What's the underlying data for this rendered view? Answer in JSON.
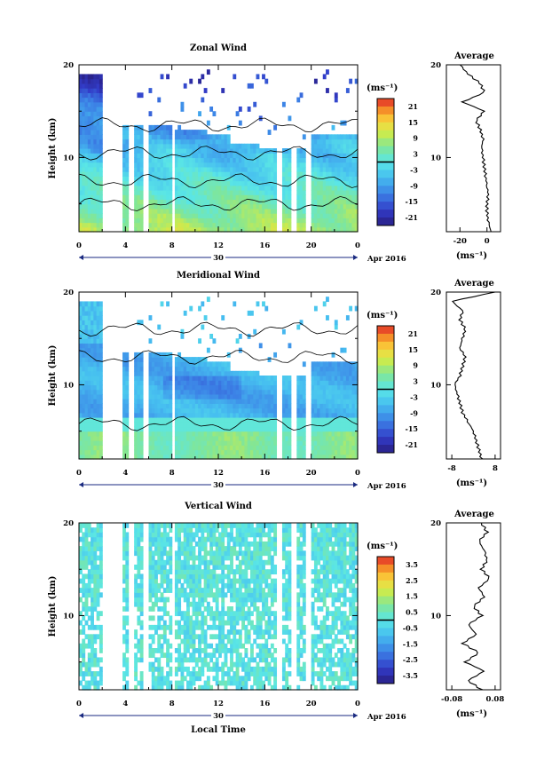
{
  "chart_data": [
    {
      "type": "heatmap",
      "title": "Zonal Wind",
      "ylabel": "Height (km)",
      "xlabel": "",
      "x_ticks": [
        "0",
        "4",
        "8",
        "12",
        "16",
        "20",
        "0"
      ],
      "y_ticks": [
        "20",
        "10"
      ],
      "xlim": [
        0,
        24
      ],
      "ylim": [
        2,
        20
      ],
      "date_day": "30",
      "date_month": "Apr 2016",
      "colorbar": {
        "unit": "(ms⁻¹)",
        "labels": [
          "21",
          "15",
          "9",
          "3",
          "-3",
          "-9",
          "-15",
          "-21"
        ],
        "range": [
          -24,
          24
        ]
      },
      "gaps_hours": [
        [
          2.0,
          3.6
        ],
        [
          4.1,
          4.6
        ],
        [
          5.3,
          6.0
        ],
        [
          7.8,
          8.1
        ],
        [
          17.0,
          17.5
        ],
        [
          18.2,
          18.6
        ],
        [
          19.4,
          19.9
        ]
      ],
      "profile": {
        "title": "Average",
        "xlabel": "(ms⁻¹)",
        "x_ticks": [
          "-20",
          "0"
        ],
        "xlim": [
          -30,
          10
        ],
        "y_ticks": [
          "20",
          "10"
        ],
        "z": [
          2,
          3,
          4,
          5,
          6,
          7,
          8,
          9,
          10,
          11,
          12,
          13,
          14,
          15,
          16,
          17,
          18,
          19,
          20
        ],
        "values": [
          3,
          1,
          0,
          0,
          1,
          0,
          -1,
          -2,
          -3,
          -4,
          -3,
          -5,
          -8,
          -2,
          -18,
          -2,
          -5,
          -14,
          -20
        ]
      }
    },
    {
      "type": "heatmap",
      "title": "Meridional Wind",
      "ylabel": "Height (km)",
      "xlabel": "",
      "x_ticks": [
        "0",
        "4",
        "8",
        "12",
        "16",
        "20",
        "0"
      ],
      "y_ticks": [
        "20",
        "10"
      ],
      "xlim": [
        0,
        24
      ],
      "ylim": [
        2,
        20
      ],
      "date_day": "30",
      "date_month": "Apr 2016",
      "colorbar": {
        "unit": "(ms⁻¹)",
        "labels": [
          "21",
          "15",
          "9",
          "3",
          "-3",
          "-9",
          "-15",
          "-21"
        ],
        "range": [
          -24,
          24
        ]
      },
      "gaps_hours": [
        [
          2.0,
          3.6
        ],
        [
          4.1,
          4.6
        ],
        [
          5.3,
          6.0
        ],
        [
          7.8,
          8.1
        ],
        [
          17.0,
          17.5
        ],
        [
          18.2,
          18.6
        ],
        [
          19.4,
          19.9
        ]
      ],
      "profile": {
        "title": "Average",
        "xlabel": "(ms⁻¹)",
        "x_ticks": [
          "-8",
          "8"
        ],
        "xlim": [
          -10,
          10
        ],
        "y_ticks": [
          "20",
          "10"
        ],
        "z": [
          2,
          3,
          4,
          5,
          6,
          7,
          8,
          9,
          10,
          11,
          12,
          13,
          14,
          15,
          16,
          17,
          18,
          19,
          20
        ],
        "values": [
          3,
          2,
          1,
          0,
          -2,
          -4,
          -5,
          -6,
          -7,
          -5,
          -4,
          -3,
          -5,
          -4,
          -3,
          -5,
          -4,
          -8,
          8
        ]
      }
    },
    {
      "type": "heatmap",
      "title": "Vertical Wind",
      "ylabel": "Height (km)",
      "xlabel": "Local Time",
      "x_ticks": [
        "0",
        "4",
        "8",
        "12",
        "16",
        "20",
        "0"
      ],
      "y_ticks": [
        "20",
        "10"
      ],
      "xlim": [
        0,
        24
      ],
      "ylim": [
        2,
        20
      ],
      "date_day": "30",
      "date_month": "Apr 2016",
      "colorbar": {
        "unit": "(ms⁻¹)",
        "labels": [
          "3.5",
          "2.5",
          "1.5",
          "0.5",
          "-0.5",
          "-1.5",
          "-2.5",
          "-3.5"
        ],
        "range": [
          -4,
          4
        ]
      },
      "gaps_hours": [
        [
          2.0,
          3.6
        ],
        [
          4.1,
          4.6
        ],
        [
          5.3,
          6.0
        ],
        [
          7.8,
          8.1
        ],
        [
          17.0,
          17.5
        ],
        [
          18.2,
          18.6
        ],
        [
          19.4,
          19.9
        ]
      ],
      "profile": {
        "title": "Average",
        "xlabel": "(ms⁻¹)",
        "x_ticks": [
          "-0.08",
          "0.08"
        ],
        "xlim": [
          -0.1,
          0.1
        ],
        "y_ticks": [
          "20",
          "10"
        ],
        "z": [
          2,
          3,
          4,
          5,
          6,
          7,
          8,
          9,
          10,
          11,
          12,
          13,
          14,
          15,
          16,
          17,
          18,
          19,
          20
        ],
        "values": [
          0.03,
          -0.02,
          0.04,
          -0.03,
          0.02,
          -0.04,
          0.01,
          -0.02,
          0.03,
          0.0,
          0.04,
          0.02,
          0.06,
          0.03,
          0.05,
          0.04,
          0.02,
          0.05,
          0.03
        ]
      }
    }
  ]
}
